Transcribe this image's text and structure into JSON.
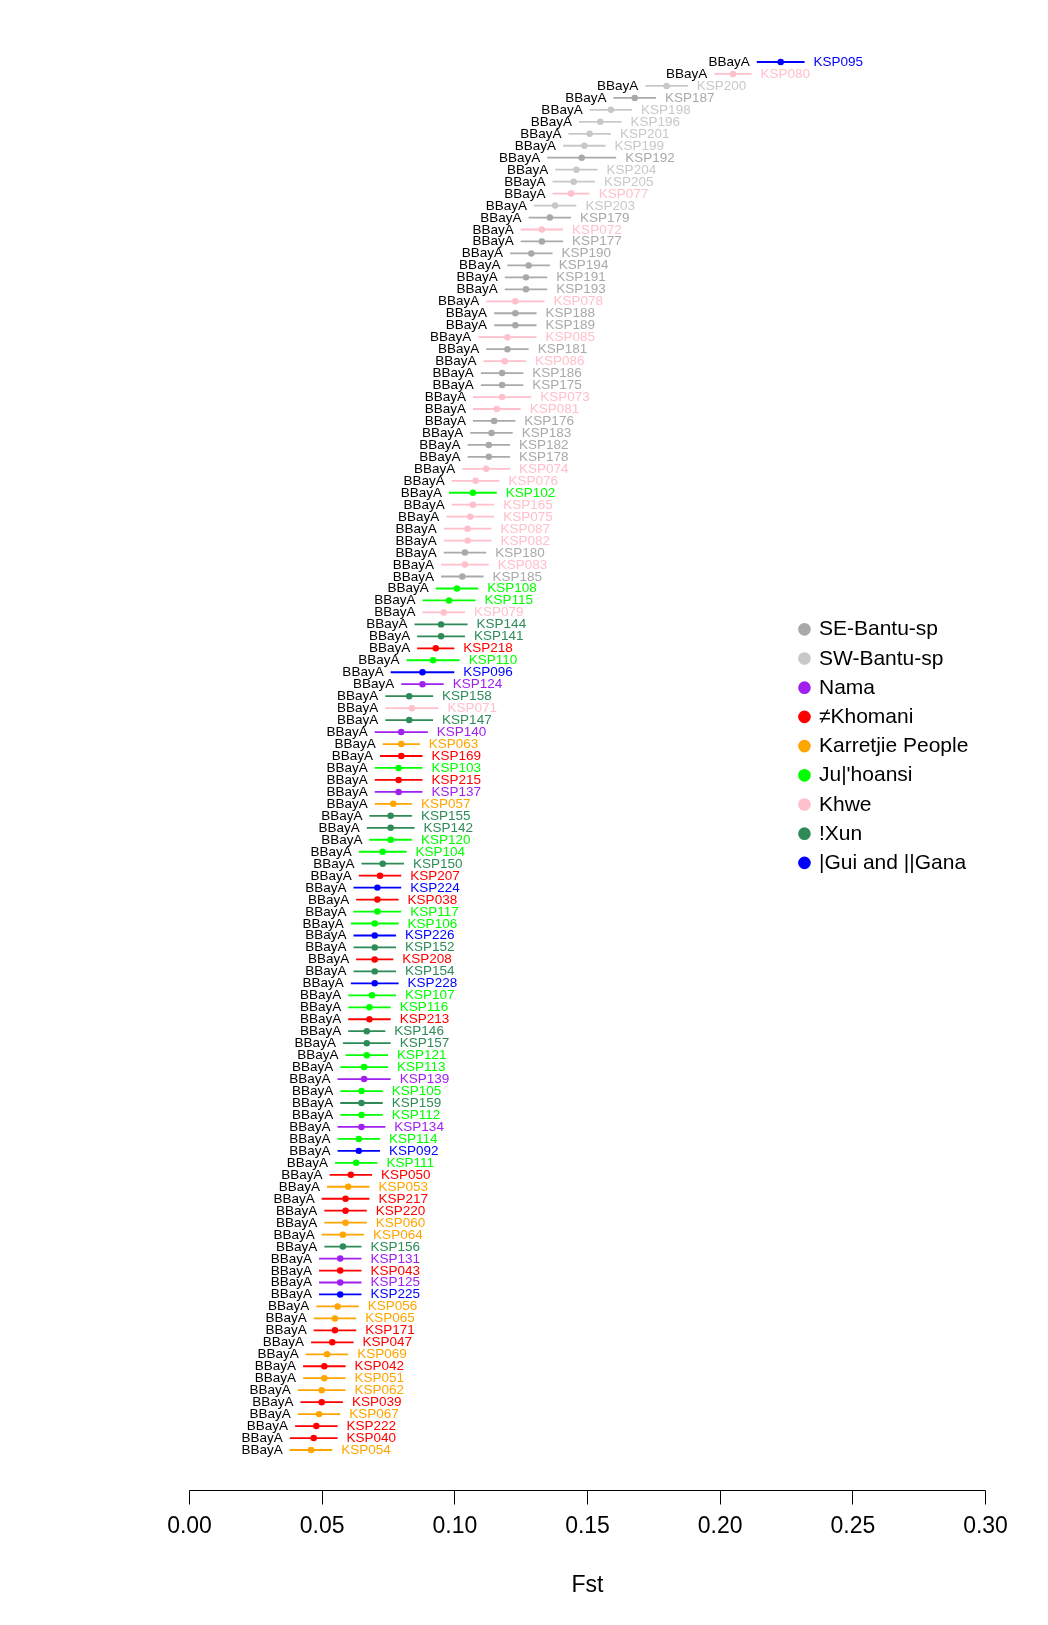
{
  "chart_data": {
    "type": "scatter",
    "orientation": "horizontal",
    "xlabel": "Fst",
    "xlim": [
      0,
      0.3
    ],
    "xticks": [
      {
        "value": 0,
        "label": "0.00"
      },
      {
        "value": 0.05,
        "label": "0.05"
      },
      {
        "value": 0.1,
        "label": "0.10"
      },
      {
        "value": 0.15,
        "label": "0.15"
      },
      {
        "value": 0.2,
        "label": "0.20"
      },
      {
        "value": 0.25,
        "label": "0.25"
      },
      {
        "value": 0.3,
        "label": "0.30"
      }
    ],
    "grid": false,
    "legend": "right",
    "marker": "circle",
    "tick_labels": "x",
    "categories": [
      "KSP095",
      "KSP080",
      "KSP200",
      "KSP187",
      "KSP198",
      "KSP196",
      "KSP201",
      "KSP199",
      "KSP192",
      "KSP204",
      "KSP205",
      "KSP077",
      "KSP203",
      "KSP179",
      "KSP072",
      "KSP177",
      "KSP190",
      "KSP194",
      "KSP191",
      "KSP193",
      "KSP078",
      "KSP188",
      "KSP189",
      "KSP085",
      "KSP181",
      "KSP086",
      "KSP186",
      "KSP175",
      "KSP073",
      "KSP081",
      "KSP176",
      "KSP183",
      "KSP182",
      "KSP178",
      "KSP074",
      "KSP076",
      "KSP102",
      "KSP165",
      "KSP075",
      "KSP087",
      "KSP082",
      "KSP180",
      "KSP083",
      "KSP185",
      "KSP108",
      "KSP115",
      "KSP079",
      "KSP144",
      "KSP141",
      "KSP218",
      "KSP110",
      "KSP096",
      "KSP124",
      "KSP158",
      "KSP071",
      "KSP147",
      "KSP140",
      "KSP063",
      "KSP169",
      "KSP103",
      "KSP215",
      "KSP137",
      "KSP057",
      "KSP155",
      "KSP142",
      "KSP120",
      "KSP104",
      "KSP150",
      "KSP207",
      "KSP224",
      "KSP038",
      "KSP117",
      "KSP106",
      "KSP226",
      "KSP152",
      "KSP208",
      "KSP154",
      "KSP228",
      "KSP107",
      "KSP116",
      "KSP213",
      "KSP146",
      "KSP157",
      "KSP121",
      "KSP113",
      "KSP139",
      "KSP105",
      "KSP159",
      "KSP112",
      "KSP134",
      "KSP114",
      "KSP092",
      "KSP111",
      "KSP050",
      "KSP053",
      "KSP217",
      "KSP220",
      "KSP060",
      "KSP064",
      "KSP156",
      "KSP131",
      "KSP043",
      "KSP125",
      "KSP225",
      "KSP056",
      "KSP065",
      "KSP171",
      "KSP047",
      "KSP069",
      "KSP042",
      "KSP051",
      "KSP062",
      "KSP039",
      "KSP067",
      "KSP222",
      "KSP040",
      "KSP054"
    ],
    "series": [
      {
        "name": "SE-Bantu-sp",
        "color": "#a9a9a9",
        "values": [
          null,
          null,
          null,
          0.168,
          null,
          null,
          null,
          null,
          0.148,
          null,
          null,
          null,
          null,
          0.136,
          null,
          0.133,
          0.129,
          0.128,
          0.127,
          0.127,
          null,
          0.123,
          0.123,
          null,
          0.12,
          null,
          0.118,
          0.118,
          null,
          null,
          0.115,
          0.114,
          0.113,
          0.113,
          null,
          null,
          null,
          null,
          null,
          null,
          null,
          0.104,
          null,
          0.103,
          null,
          null,
          null,
          null,
          null,
          null,
          null,
          null,
          null,
          null,
          null,
          null,
          null,
          null,
          null,
          null,
          null,
          null,
          null,
          null,
          null,
          null,
          null,
          null,
          null,
          null,
          null,
          null,
          null,
          null,
          null,
          null,
          null,
          null,
          null,
          null,
          null,
          null,
          null,
          null,
          null,
          null,
          null,
          null,
          null,
          null,
          null,
          null,
          null,
          null,
          null,
          null,
          null,
          null,
          null,
          null,
          null,
          null,
          null,
          null,
          null,
          null,
          null,
          null,
          null,
          null,
          null,
          null,
          null,
          null,
          null,
          null,
          null
        ],
        "errors": [
          null,
          null,
          null,
          0.008,
          null,
          null,
          null,
          null,
          0.013,
          null,
          null,
          null,
          null,
          0.008,
          null,
          0.008,
          0.008,
          0.008,
          0.008,
          0.008,
          null,
          0.008,
          0.008,
          null,
          0.008,
          null,
          0.008,
          0.008,
          null,
          null,
          0.008,
          0.008,
          0.008,
          0.008,
          null,
          null,
          null,
          null,
          null,
          null,
          null,
          0.008,
          null,
          0.008,
          null,
          null,
          null,
          null,
          null,
          null,
          null,
          null,
          null,
          null,
          null,
          null,
          null,
          null,
          null,
          null,
          null,
          null,
          null,
          null,
          null,
          null,
          null,
          null,
          null,
          null,
          null,
          null,
          null,
          null,
          null,
          null,
          null,
          null,
          null,
          null,
          null,
          null,
          null,
          null,
          null,
          null,
          null,
          null,
          null,
          null,
          null,
          null,
          null,
          null,
          null,
          null,
          null,
          null,
          null,
          null,
          null,
          null,
          null,
          null,
          null,
          null,
          null,
          null,
          null,
          null,
          null,
          null,
          null,
          null,
          null,
          null,
          null
        ]
      },
      {
        "name": "SW-Bantu-sp",
        "color": "#c8c8c8",
        "values": [
          null,
          null,
          0.18,
          null,
          0.159,
          0.155,
          0.151,
          0.149,
          null,
          0.146,
          0.145,
          null,
          0.138,
          null,
          null,
          null,
          null,
          null,
          null,
          null,
          null,
          null,
          null,
          null,
          null,
          null,
          null,
          null,
          null,
          null,
          null,
          null,
          null,
          null,
          null,
          null,
          null,
          null,
          null,
          null,
          null,
          null,
          null,
          null,
          null,
          null,
          null,
          null,
          null,
          null,
          null,
          null,
          null,
          null,
          null,
          null,
          null,
          null,
          null,
          null,
          null,
          null,
          null,
          null,
          null,
          null,
          null,
          null,
          null,
          null,
          null,
          null,
          null,
          null,
          null,
          null,
          null,
          null,
          null,
          null,
          null,
          null,
          null,
          null,
          null,
          null,
          null,
          null,
          null,
          null,
          null,
          null,
          null,
          null,
          null,
          null,
          null,
          null,
          null,
          null,
          null,
          null,
          null,
          null,
          null,
          null,
          null,
          null,
          null,
          null,
          null,
          null,
          null,
          null,
          null,
          null,
          null
        ],
        "errors": [
          null,
          null,
          0.008,
          null,
          0.008,
          0.008,
          0.008,
          0.008,
          null,
          0.008,
          0.008,
          null,
          0.008,
          null,
          null,
          null,
          null,
          null,
          null,
          null,
          null,
          null,
          null,
          null,
          null,
          null,
          null,
          null,
          null,
          null,
          null,
          null,
          null,
          null,
          null,
          null,
          null,
          null,
          null,
          null,
          null,
          null,
          null,
          null,
          null,
          null,
          null,
          null,
          null,
          null,
          null,
          null,
          null,
          null,
          null,
          null,
          null,
          null,
          null,
          null,
          null,
          null,
          null,
          null,
          null,
          null,
          null,
          null,
          null,
          null,
          null,
          null,
          null,
          null,
          null,
          null,
          null,
          null,
          null,
          null,
          null,
          null,
          null,
          null,
          null,
          null,
          null,
          null,
          null,
          null,
          null,
          null,
          null,
          null,
          null,
          null,
          null,
          null,
          null,
          null,
          null,
          null,
          null,
          null,
          null,
          null,
          null,
          null,
          null,
          null,
          null,
          null,
          null,
          null,
          null,
          null,
          null
        ]
      },
      {
        "name": "Nama",
        "color": "#a020f0",
        "values": [
          null,
          null,
          null,
          null,
          null,
          null,
          null,
          null,
          null,
          null,
          null,
          null,
          null,
          null,
          null,
          null,
          null,
          null,
          null,
          null,
          null,
          null,
          null,
          null,
          null,
          null,
          null,
          null,
          null,
          null,
          null,
          null,
          null,
          null,
          null,
          null,
          null,
          null,
          null,
          null,
          null,
          null,
          null,
          null,
          null,
          null,
          null,
          null,
          null,
          null,
          null,
          null,
          0.088,
          null,
          null,
          null,
          0.08,
          null,
          null,
          null,
          null,
          0.079,
          null,
          null,
          null,
          null,
          null,
          null,
          null,
          null,
          null,
          null,
          null,
          null,
          null,
          null,
          null,
          null,
          null,
          null,
          null,
          null,
          null,
          null,
          null,
          0.066,
          null,
          null,
          null,
          0.065,
          null,
          null,
          null,
          null,
          null,
          null,
          null,
          null,
          null,
          null,
          0.057,
          null,
          0.057,
          null,
          null,
          null,
          null,
          null,
          null,
          null,
          null,
          null,
          null,
          null,
          null,
          null,
          null
        ],
        "errors": [
          null,
          null,
          null,
          null,
          null,
          null,
          null,
          null,
          null,
          null,
          null,
          null,
          null,
          null,
          null,
          null,
          null,
          null,
          null,
          null,
          null,
          null,
          null,
          null,
          null,
          null,
          null,
          null,
          null,
          null,
          null,
          null,
          null,
          null,
          null,
          null,
          null,
          null,
          null,
          null,
          null,
          null,
          null,
          null,
          null,
          null,
          null,
          null,
          null,
          null,
          null,
          null,
          0.008,
          null,
          null,
          null,
          0.01,
          null,
          null,
          null,
          null,
          0.009,
          null,
          null,
          null,
          null,
          null,
          null,
          null,
          null,
          null,
          null,
          null,
          null,
          null,
          null,
          null,
          null,
          null,
          null,
          null,
          null,
          null,
          null,
          null,
          0.01,
          null,
          null,
          null,
          0.009,
          null,
          null,
          null,
          null,
          null,
          null,
          null,
          null,
          null,
          null,
          0.008,
          null,
          0.008,
          null,
          null,
          null,
          null,
          null,
          null,
          null,
          null,
          null,
          null,
          null,
          null,
          null,
          null
        ]
      },
      {
        "name": "≠Khomani",
        "color": "#ff0000",
        "values": [
          null,
          null,
          null,
          null,
          null,
          null,
          null,
          null,
          null,
          null,
          null,
          null,
          null,
          null,
          null,
          null,
          null,
          null,
          null,
          null,
          null,
          null,
          null,
          null,
          null,
          null,
          null,
          null,
          null,
          null,
          null,
          null,
          null,
          null,
          null,
          null,
          null,
          null,
          null,
          null,
          null,
          null,
          null,
          null,
          null,
          null,
          null,
          null,
          null,
          0.093,
          null,
          null,
          null,
          null,
          null,
          null,
          null,
          null,
          0.08,
          null,
          0.079,
          null,
          null,
          null,
          null,
          null,
          null,
          null,
          0.072,
          null,
          0.071,
          null,
          null,
          null,
          null,
          0.07,
          null,
          null,
          null,
          null,
          0.068,
          null,
          null,
          null,
          null,
          null,
          null,
          null,
          null,
          null,
          null,
          null,
          null,
          0.061,
          null,
          0.059,
          0.059,
          null,
          null,
          null,
          null,
          0.057,
          null,
          null,
          null,
          null,
          0.055,
          0.054,
          null,
          0.051,
          null,
          null,
          0.05,
          null,
          0.048,
          0.047,
          null
        ],
        "errors": [
          null,
          null,
          null,
          null,
          null,
          null,
          null,
          null,
          null,
          null,
          null,
          null,
          null,
          null,
          null,
          null,
          null,
          null,
          null,
          null,
          null,
          null,
          null,
          null,
          null,
          null,
          null,
          null,
          null,
          null,
          null,
          null,
          null,
          null,
          null,
          null,
          null,
          null,
          null,
          null,
          null,
          null,
          null,
          null,
          null,
          null,
          null,
          null,
          null,
          0.007,
          null,
          null,
          null,
          null,
          null,
          null,
          null,
          null,
          0.008,
          null,
          0.009,
          null,
          null,
          null,
          null,
          null,
          null,
          null,
          0.008,
          null,
          0.008,
          null,
          null,
          null,
          null,
          0.007,
          null,
          null,
          null,
          null,
          0.008,
          null,
          null,
          null,
          null,
          null,
          null,
          null,
          null,
          null,
          null,
          null,
          null,
          0.008,
          null,
          0.009,
          0.008,
          null,
          null,
          null,
          null,
          0.008,
          null,
          null,
          null,
          null,
          0.008,
          0.008,
          null,
          0.008,
          null,
          null,
          0.008,
          null,
          0.008,
          0.009,
          null
        ]
      },
      {
        "name": "Karretjie People",
        "color": "#ffa500",
        "values": [
          null,
          null,
          null,
          null,
          null,
          null,
          null,
          null,
          null,
          null,
          null,
          null,
          null,
          null,
          null,
          null,
          null,
          null,
          null,
          null,
          null,
          null,
          null,
          null,
          null,
          null,
          null,
          null,
          null,
          null,
          null,
          null,
          null,
          null,
          null,
          null,
          null,
          null,
          null,
          null,
          null,
          null,
          null,
          null,
          null,
          null,
          null,
          null,
          null,
          null,
          null,
          null,
          null,
          null,
          null,
          null,
          null,
          0.08,
          null,
          null,
          null,
          null,
          0.077,
          null,
          null,
          null,
          null,
          null,
          null,
          null,
          null,
          null,
          null,
          null,
          null,
          null,
          null,
          null,
          null,
          null,
          null,
          null,
          null,
          null,
          null,
          null,
          null,
          null,
          null,
          null,
          null,
          null,
          null,
          null,
          0.06,
          null,
          null,
          0.059,
          0.058,
          null,
          null,
          null,
          null,
          null,
          0.056,
          0.055,
          null,
          null,
          0.052,
          null,
          0.051,
          0.05,
          null,
          0.049,
          null,
          null,
          0.046
        ],
        "errors": [
          null,
          null,
          null,
          null,
          null,
          null,
          null,
          null,
          null,
          null,
          null,
          null,
          null,
          null,
          null,
          null,
          null,
          null,
          null,
          null,
          null,
          null,
          null,
          null,
          null,
          null,
          null,
          null,
          null,
          null,
          null,
          null,
          null,
          null,
          null,
          null,
          null,
          null,
          null,
          null,
          null,
          null,
          null,
          null,
          null,
          null,
          null,
          null,
          null,
          null,
          null,
          null,
          null,
          null,
          null,
          null,
          null,
          0.007,
          null,
          null,
          null,
          null,
          0.007,
          null,
          null,
          null,
          null,
          null,
          null,
          null,
          null,
          null,
          null,
          null,
          null,
          null,
          null,
          null,
          null,
          null,
          null,
          null,
          null,
          null,
          null,
          null,
          null,
          null,
          null,
          null,
          null,
          null,
          null,
          null,
          0.008,
          null,
          null,
          0.008,
          0.008,
          null,
          null,
          null,
          null,
          null,
          0.008,
          0.008,
          null,
          null,
          0.008,
          null,
          0.008,
          0.009,
          null,
          0.008,
          null,
          null,
          0.008
        ]
      },
      {
        "name": "Ju|'hoansi",
        "color": "#00ff00",
        "values": [
          null,
          null,
          null,
          null,
          null,
          null,
          null,
          null,
          null,
          null,
          null,
          null,
          null,
          null,
          null,
          null,
          null,
          null,
          null,
          null,
          null,
          null,
          null,
          null,
          null,
          null,
          null,
          null,
          null,
          null,
          null,
          null,
          null,
          null,
          null,
          null,
          0.107,
          null,
          null,
          null,
          null,
          null,
          null,
          null,
          0.101,
          0.098,
          null,
          null,
          null,
          null,
          0.092,
          null,
          null,
          null,
          null,
          null,
          null,
          null,
          null,
          0.079,
          null,
          null,
          null,
          null,
          null,
          0.076,
          0.073,
          null,
          null,
          null,
          null,
          0.071,
          0.07,
          null,
          null,
          null,
          null,
          null,
          0.069,
          0.068,
          null,
          null,
          null,
          0.067,
          0.066,
          null,
          0.065,
          null,
          0.065,
          null,
          0.064,
          null,
          0.063,
          null,
          null,
          null,
          null,
          null,
          null,
          null,
          null,
          null,
          null,
          null,
          null,
          null,
          null,
          null,
          null,
          null,
          null,
          null,
          null,
          null,
          null,
          null,
          null
        ],
        "errors": [
          null,
          null,
          null,
          null,
          null,
          null,
          null,
          null,
          null,
          null,
          null,
          null,
          null,
          null,
          null,
          null,
          null,
          null,
          null,
          null,
          null,
          null,
          null,
          null,
          null,
          null,
          null,
          null,
          null,
          null,
          null,
          null,
          null,
          null,
          null,
          null,
          0.009,
          null,
          null,
          null,
          null,
          null,
          null,
          null,
          0.008,
          0.01,
          null,
          null,
          null,
          null,
          0.01,
          null,
          null,
          null,
          null,
          null,
          null,
          null,
          null,
          0.009,
          null,
          null,
          null,
          null,
          null,
          0.008,
          0.009,
          null,
          null,
          null,
          null,
          0.009,
          0.009,
          null,
          null,
          null,
          null,
          null,
          0.009,
          0.008,
          null,
          null,
          null,
          0.008,
          0.009,
          null,
          0.008,
          null,
          0.008,
          null,
          0.008,
          null,
          0.008,
          null,
          null,
          null,
          null,
          null,
          null,
          null,
          null,
          null,
          null,
          null,
          null,
          null,
          null,
          null,
          null,
          null,
          null,
          null,
          null,
          null,
          null,
          null,
          null
        ]
      },
      {
        "name": "Khwe",
        "color": "#ffc0cb",
        "values": [
          null,
          0.205,
          null,
          null,
          null,
          null,
          null,
          null,
          null,
          null,
          null,
          0.144,
          null,
          null,
          0.133,
          null,
          null,
          null,
          null,
          null,
          0.123,
          null,
          null,
          0.12,
          null,
          0.119,
          null,
          null,
          0.118,
          0.116,
          null,
          null,
          null,
          null,
          0.112,
          0.108,
          null,
          0.107,
          0.106,
          0.105,
          0.105,
          null,
          0.104,
          null,
          null,
          null,
          0.096,
          null,
          null,
          null,
          null,
          null,
          null,
          null,
          0.084,
          null,
          null,
          null,
          null,
          null,
          null,
          null,
          null,
          null,
          null,
          null,
          null,
          null,
          null,
          null,
          null,
          null,
          null,
          null,
          null,
          null,
          null,
          null,
          null,
          null,
          null,
          null,
          null,
          null,
          null,
          null,
          null,
          null,
          null,
          null,
          null,
          null,
          null,
          null,
          null,
          null,
          null,
          null,
          null,
          null,
          null,
          null,
          null,
          null,
          null,
          null,
          null,
          null,
          null,
          null,
          null,
          null,
          null,
          null,
          null,
          null,
          null
        ],
        "errors": [
          null,
          0.007,
          null,
          null,
          null,
          null,
          null,
          null,
          null,
          null,
          null,
          0.007,
          null,
          null,
          0.008,
          null,
          null,
          null,
          null,
          null,
          0.011,
          null,
          null,
          0.011,
          null,
          0.008,
          null,
          null,
          0.011,
          0.009,
          null,
          null,
          null,
          null,
          0.009,
          0.009,
          null,
          0.008,
          0.009,
          0.009,
          0.009,
          null,
          0.009,
          null,
          null,
          null,
          0.008,
          null,
          null,
          null,
          null,
          null,
          null,
          null,
          0.01,
          null,
          null,
          null,
          null,
          null,
          null,
          null,
          null,
          null,
          null,
          null,
          null,
          null,
          null,
          null,
          null,
          null,
          null,
          null,
          null,
          null,
          null,
          null,
          null,
          null,
          null,
          null,
          null,
          null,
          null,
          null,
          null,
          null,
          null,
          null,
          null,
          null,
          null,
          null,
          null,
          null,
          null,
          null,
          null,
          null,
          null,
          null,
          null,
          null,
          null,
          null,
          null,
          null,
          null,
          null,
          null,
          null,
          null,
          null,
          null,
          null,
          null
        ]
      },
      {
        "name": "!Xun",
        "color": "#2e8b57",
        "values": [
          null,
          null,
          null,
          null,
          null,
          null,
          null,
          null,
          null,
          null,
          null,
          null,
          null,
          null,
          null,
          null,
          null,
          null,
          null,
          null,
          null,
          null,
          null,
          null,
          null,
          null,
          null,
          null,
          null,
          null,
          null,
          null,
          null,
          null,
          null,
          null,
          null,
          null,
          null,
          null,
          null,
          null,
          null,
          null,
          null,
          null,
          null,
          0.095,
          0.095,
          null,
          null,
          null,
          null,
          0.083,
          null,
          0.083,
          null,
          null,
          null,
          null,
          null,
          null,
          null,
          0.076,
          0.076,
          null,
          null,
          0.073,
          null,
          null,
          null,
          null,
          null,
          null,
          0.07,
          null,
          0.07,
          null,
          null,
          null,
          null,
          0.067,
          0.067,
          null,
          null,
          null,
          null,
          0.065,
          null,
          null,
          null,
          null,
          null,
          null,
          null,
          null,
          null,
          null,
          null,
          0.058,
          null,
          null,
          null,
          null,
          null,
          null,
          null,
          null,
          null,
          null,
          null,
          null,
          null,
          null,
          null,
          null,
          null
        ],
        "errors": [
          null,
          null,
          null,
          null,
          null,
          null,
          null,
          null,
          null,
          null,
          null,
          null,
          null,
          null,
          null,
          null,
          null,
          null,
          null,
          null,
          null,
          null,
          null,
          null,
          null,
          null,
          null,
          null,
          null,
          null,
          null,
          null,
          null,
          null,
          null,
          null,
          null,
          null,
          null,
          null,
          null,
          null,
          null,
          null,
          null,
          null,
          null,
          0.01,
          0.009,
          null,
          null,
          null,
          null,
          0.009,
          null,
          0.009,
          null,
          null,
          null,
          null,
          null,
          null,
          null,
          0.008,
          0.009,
          null,
          null,
          0.008,
          null,
          null,
          null,
          null,
          null,
          null,
          0.008,
          null,
          0.008,
          null,
          null,
          null,
          null,
          0.007,
          0.009,
          null,
          null,
          null,
          null,
          0.008,
          null,
          null,
          null,
          null,
          null,
          null,
          null,
          null,
          null,
          null,
          null,
          0.007,
          null,
          null,
          null,
          null,
          null,
          null,
          null,
          null,
          null,
          null,
          null,
          null,
          null,
          null,
          null,
          null,
          null
        ]
      },
      {
        "name": "|Gui and ||Gana",
        "color": "#0000ff",
        "values": [
          0.223,
          null,
          null,
          null,
          null,
          null,
          null,
          null,
          null,
          null,
          null,
          null,
          null,
          null,
          null,
          null,
          null,
          null,
          null,
          null,
          null,
          null,
          null,
          null,
          null,
          null,
          null,
          null,
          null,
          null,
          null,
          null,
          null,
          null,
          null,
          null,
          null,
          null,
          null,
          null,
          null,
          null,
          null,
          null,
          null,
          null,
          null,
          null,
          null,
          null,
          null,
          0.088,
          null,
          null,
          null,
          null,
          null,
          null,
          null,
          null,
          null,
          null,
          null,
          null,
          null,
          null,
          null,
          null,
          null,
          0.071,
          null,
          null,
          null,
          0.07,
          null,
          null,
          null,
          0.07,
          null,
          null,
          null,
          null,
          null,
          null,
          null,
          null,
          null,
          null,
          null,
          null,
          null,
          0.064,
          null,
          null,
          null,
          null,
          null,
          null,
          null,
          null,
          null,
          null,
          null,
          0.057,
          null,
          null,
          null,
          null,
          null,
          null,
          null,
          null,
          null,
          null,
          null,
          null,
          null
        ],
        "errors": [
          0.009,
          null,
          null,
          null,
          null,
          null,
          null,
          null,
          null,
          null,
          null,
          null,
          null,
          null,
          null,
          null,
          null,
          null,
          null,
          null,
          null,
          null,
          null,
          null,
          null,
          null,
          null,
          null,
          null,
          null,
          null,
          null,
          null,
          null,
          null,
          null,
          null,
          null,
          null,
          null,
          null,
          null,
          null,
          null,
          null,
          null,
          null,
          null,
          null,
          null,
          null,
          0.012,
          null,
          null,
          null,
          null,
          null,
          null,
          null,
          null,
          null,
          null,
          null,
          null,
          null,
          null,
          null,
          null,
          null,
          0.009,
          null,
          null,
          null,
          0.008,
          null,
          null,
          null,
          0.009,
          null,
          null,
          null,
          null,
          null,
          null,
          null,
          null,
          null,
          null,
          null,
          null,
          null,
          0.008,
          null,
          null,
          null,
          null,
          null,
          null,
          null,
          null,
          null,
          null,
          null,
          0.008,
          null,
          null,
          null,
          null,
          null,
          null,
          null,
          null,
          null,
          null,
          null,
          null,
          null
        ]
      }
    ],
    "annotations": [
      "BBayA",
      "BBayA",
      "BBayA",
      "BBayA",
      "BBayA",
      "BBayA",
      "BBayA",
      "BBayA",
      "BBayA",
      "BBayA",
      "BBayA",
      "BBayA",
      "BBayA",
      "BBayA",
      "BBayA",
      "BBayA",
      "BBayA",
      "BBayA",
      "BBayA",
      "BBayA",
      "BBayA",
      "BBayA",
      "BBayA",
      "BBayA",
      "BBayA",
      "BBayA",
      "BBayA",
      "BBayA",
      "BBayA",
      "BBayA",
      "BBayA",
      "BBayA",
      "BBayA",
      "BBayA",
      "BBayA",
      "BBayA",
      "BBayA",
      "BBayA",
      "BBayA",
      "BBayA",
      "BBayA",
      "BBayA",
      "BBayA",
      "BBayA",
      "BBayA",
      "BBayA",
      "BBayA",
      "BBayA",
      "BBayA",
      "BBayA",
      "BBayA",
      "BBayA",
      "BBayA",
      "BBayA",
      "BBayA",
      "BBayA",
      "BBayA",
      "BBayA",
      "BBayA",
      "BBayA",
      "BBayA",
      "BBayA",
      "BBayA",
      "BBayA",
      "BBayA",
      "BBayA",
      "BBayA",
      "BBayA",
      "BBayA",
      "BBayA",
      "BBayA",
      "BBayA",
      "BBayA",
      "BBayA",
      "BBayA",
      "BBayA",
      "BBayA",
      "BBayA",
      "BBayA",
      "BBayA",
      "BBayA",
      "BBayA",
      "BBayA",
      "BBayA",
      "BBayA",
      "BBayA",
      "BBayA",
      "BBayA",
      "BBayA",
      "BBayA",
      "BBayA",
      "BBayA",
      "BBayA",
      "BBayA",
      "BBayA",
      "BBayA",
      "BBayA",
      "BBayA",
      "BBayA",
      "BBayA",
      "BBayA",
      "BBayA",
      "BBayA",
      "BBayA",
      "BBayA",
      "BBayA",
      "BBayA",
      "BBayA",
      "BBayA",
      "BBayA",
      "BBayA",
      "BBayA",
      "BBayA",
      "BBayA",
      "BBayA",
      "BBayA",
      "BBayA"
    ]
  }
}
